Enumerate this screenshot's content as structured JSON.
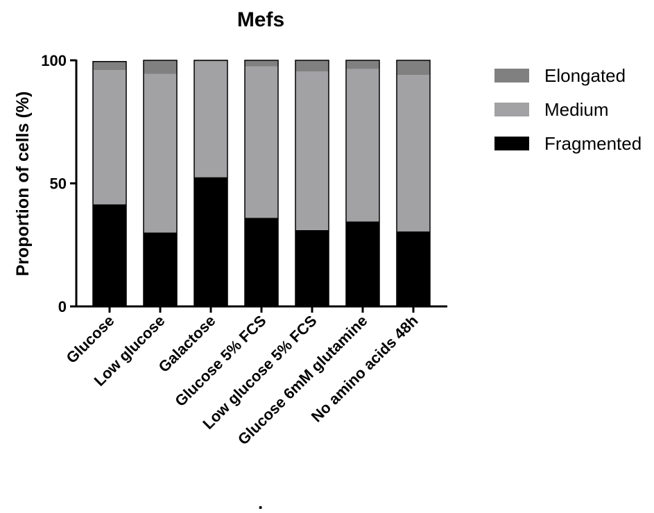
{
  "chart_data": {
    "type": "bar",
    "stacked": true,
    "title": "Mefs",
    "xlabel": "",
    "ylabel": "Proportion of cells (%)",
    "ylim": [
      0,
      100
    ],
    "yticks": [
      "0",
      "50",
      "100"
    ],
    "categories": [
      "Glucose",
      "Low glucose",
      "Galactose",
      "Glucose 5% FCS",
      "Low glucose 5% FCS",
      "Glucose 6mM glutamine",
      "No amino acids 48h"
    ],
    "series": [
      {
        "name": "Fragmented",
        "color": "#000000",
        "values": [
          41.5,
          30,
          52.5,
          36,
          31,
          34.5,
          30.5
        ]
      },
      {
        "name": "Medium",
        "color": "#a2a2a5",
        "values": [
          54.5,
          64.5,
          47,
          61.5,
          64.5,
          62,
          63.5
        ]
      },
      {
        "name": "Elongated",
        "color": "#808080",
        "values": [
          3.5,
          5.5,
          0.5,
          2.5,
          4.5,
          3.5,
          6
        ]
      }
    ],
    "legend_position": "right",
    "legend_order": [
      "Elongated",
      "Medium",
      "Fragmented"
    ],
    "grid": false
  },
  "footer": {
    "mark": "."
  }
}
